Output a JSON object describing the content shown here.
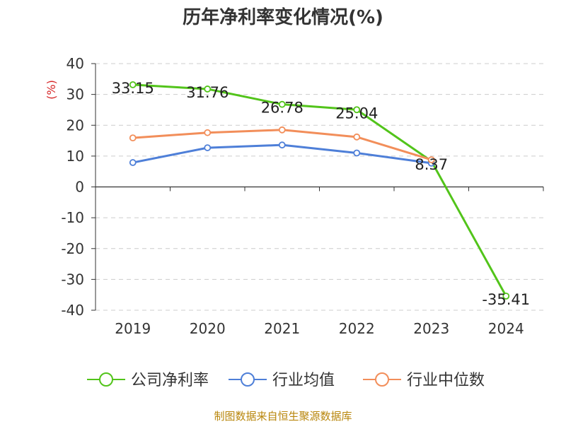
{
  "chart_data": {
    "type": "line",
    "title": "历年净利率变化情况(%)",
    "ylabel": "(%)",
    "categories": [
      "2019",
      "2020",
      "2021",
      "2022",
      "2023",
      "2024"
    ],
    "ylim": [
      -40,
      40
    ],
    "yticks": [
      40,
      30,
      20,
      10,
      0,
      -10,
      -20,
      -30,
      -40
    ],
    "grid": true,
    "legend_position": "bottom",
    "series": [
      {
        "name": "公司净利率",
        "color": "#52c41a",
        "labeled": true,
        "values": [
          33.15,
          31.76,
          26.78,
          25.04,
          8.37,
          -35.41
        ]
      },
      {
        "name": "行业均值",
        "color": "#4e7fd8",
        "labeled": false,
        "values": [
          7.9,
          12.7,
          13.6,
          11.0,
          7.7,
          null
        ]
      },
      {
        "name": "行业中位数",
        "color": "#f28e5a",
        "labeled": false,
        "values": [
          15.9,
          17.6,
          18.5,
          16.2,
          8.8,
          null
        ]
      }
    ],
    "data_labels": [
      "33.15",
      "31.76",
      "26.78",
      "25.04",
      "8.37",
      "-35.41"
    ]
  },
  "source_text": "制图数据来自恒生聚源数据库"
}
